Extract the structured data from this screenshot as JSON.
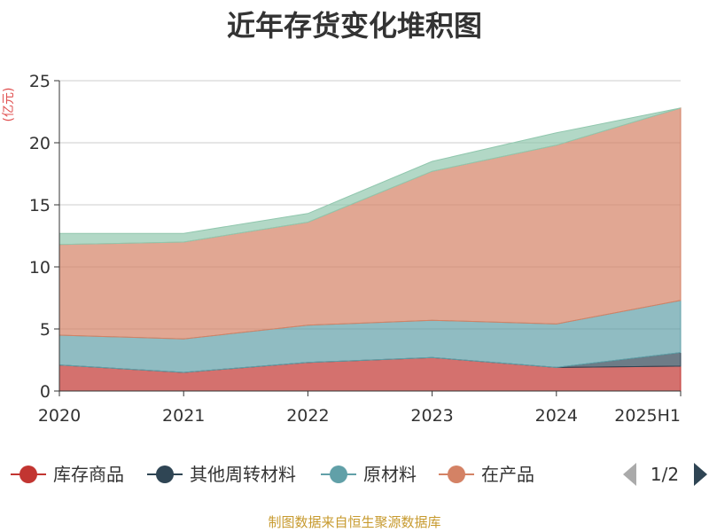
{
  "chart_data": {
    "type": "area",
    "stacked": true,
    "title": "近年存货变化堆积图",
    "ylabel": "(亿元)",
    "categories": [
      "2020",
      "2021",
      "2022",
      "2023",
      "2024",
      "2025H1"
    ],
    "ylim": [
      0,
      25
    ],
    "yticks": [
      0,
      5,
      10,
      15,
      20,
      25
    ],
    "grid": true,
    "series": [
      {
        "name": "库存商品",
        "color": "#c23531",
        "values": [
          2.1,
          1.5,
          2.3,
          2.7,
          1.9,
          2.0
        ]
      },
      {
        "name": "其他周转材料",
        "color": "#2f4554",
        "values": [
          0.0,
          0.0,
          0.0,
          0.0,
          0.0,
          1.1
        ]
      },
      {
        "name": "原材料",
        "color": "#61a0a8",
        "values": [
          2.4,
          2.7,
          3.0,
          3.0,
          3.5,
          4.2
        ]
      },
      {
        "name": "在产品",
        "color": "#d48265",
        "values": [
          7.3,
          7.8,
          8.3,
          12.0,
          14.4,
          15.5
        ]
      },
      {
        "name": "",
        "color": "#91c7ae",
        "values": [
          0.9,
          0.7,
          0.7,
          0.8,
          1.0,
          0.0
        ]
      }
    ],
    "legend": {
      "position": "bottom",
      "visible_items": [
        "库存商品",
        "其他周转材料",
        "原材料",
        "在产品"
      ],
      "page_label": "1/2"
    }
  },
  "footer": {
    "source": "制图数据来自恒生聚源数据库"
  }
}
